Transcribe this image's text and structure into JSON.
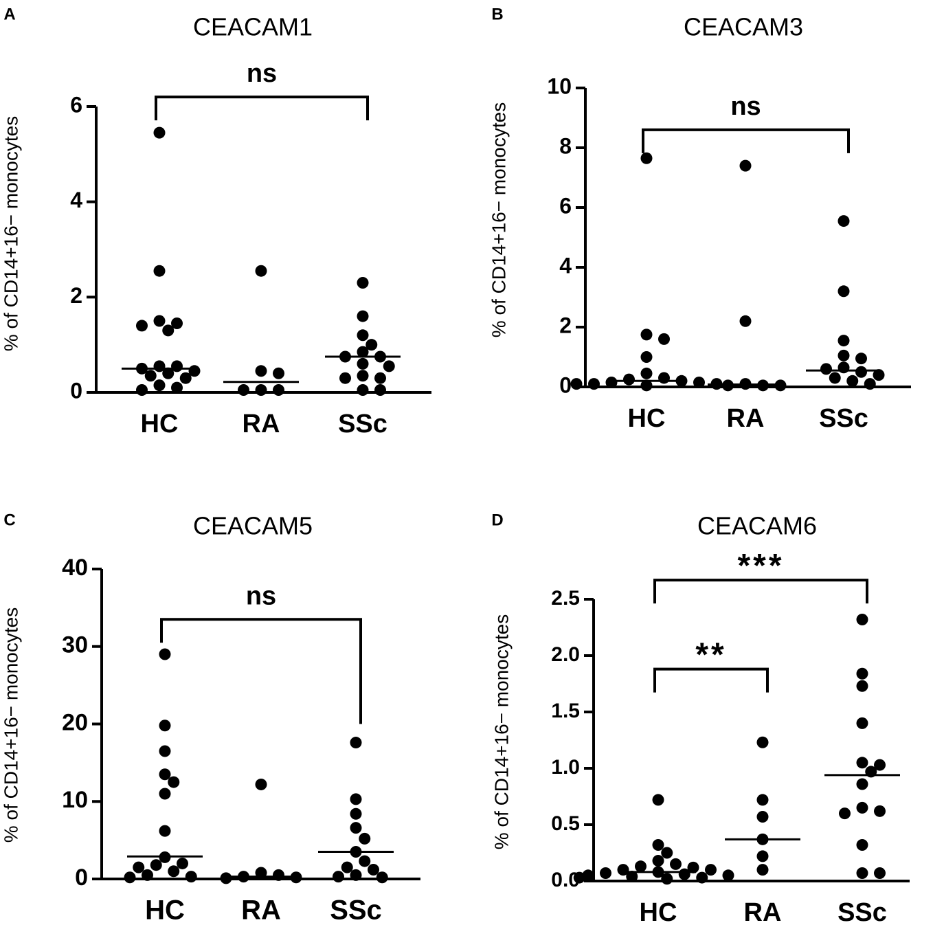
{
  "figure": {
    "panels": [
      "A",
      "B",
      "C",
      "D"
    ]
  },
  "chart_data": [
    {
      "panel": "A",
      "type": "scatter",
      "title": "CEACAM1",
      "ylabel": "% of CD14+16− monocytes",
      "categories": [
        "HC",
        "RA",
        "SSc"
      ],
      "ylim": [
        0,
        6
      ],
      "yticks": [
        "0",
        "2",
        "4",
        "6"
      ],
      "ytick_values": [
        0,
        2,
        4,
        6
      ],
      "series": [
        {
          "name": "HC",
          "values": [
            5.45,
            2.55,
            1.5,
            1.45,
            1.4,
            1.3,
            0.55,
            0.55,
            0.5,
            0.45,
            0.4,
            0.35,
            0.3,
            0.15,
            0.1,
            0.05
          ],
          "median": 0.5
        },
        {
          "name": "RA",
          "values": [
            2.55,
            0.45,
            0.4,
            0.05,
            0.05,
            0.05
          ],
          "median": 0.22
        },
        {
          "name": "SSc",
          "values": [
            2.3,
            1.6,
            1.2,
            1.0,
            0.85,
            0.75,
            0.75,
            0.6,
            0.55,
            0.35,
            0.3,
            0.3,
            0.05,
            0.05
          ],
          "median": 0.75
        }
      ],
      "comparisons": [
        {
          "from": "HC",
          "to": "SSc",
          "label": "ns",
          "level": 6.2
        }
      ]
    },
    {
      "panel": "B",
      "type": "scatter",
      "title": "CEACAM3",
      "ylabel": "% of CD14+16− monocytes",
      "categories": [
        "HC",
        "RA",
        "SSc"
      ],
      "ylim": [
        0,
        10
      ],
      "yticks": [
        "0",
        "2",
        "4",
        "6",
        "8",
        "10"
      ],
      "ytick_values": [
        0,
        2,
        4,
        6,
        8,
        10
      ],
      "series": [
        {
          "name": "HC",
          "values": [
            7.65,
            1.75,
            1.6,
            1.0,
            0.45,
            0.3,
            0.25,
            0.2,
            0.15,
            0.15,
            0.1,
            0.1,
            0.1,
            0.05
          ],
          "median": 0.2
        },
        {
          "name": "RA",
          "values": [
            7.4,
            2.2,
            0.1,
            0.05,
            0.05,
            0.05
          ],
          "median": 0.08
        },
        {
          "name": "SSc",
          "values": [
            5.55,
            3.2,
            1.55,
            1.05,
            0.95,
            0.65,
            0.6,
            0.5,
            0.4,
            0.3,
            0.2,
            0.1
          ],
          "median": 0.55
        }
      ],
      "comparisons": [
        {
          "from": "HC",
          "to": "SSc",
          "label": "ns",
          "level": 8.6
        }
      ]
    },
    {
      "panel": "C",
      "type": "scatter",
      "title": "CEACAM5",
      "ylabel": "% of CD14+16− monocytes",
      "categories": [
        "HC",
        "RA",
        "SSc"
      ],
      "ylim": [
        0,
        40
      ],
      "yticks": [
        "0",
        "10",
        "20",
        "30",
        "40"
      ],
      "ytick_values": [
        0,
        10,
        20,
        30,
        40
      ],
      "series": [
        {
          "name": "HC",
          "values": [
            29.0,
            19.8,
            16.5,
            13.5,
            12.5,
            11.0,
            6.2,
            2.8,
            2.0,
            1.8,
            1.5,
            1.0,
            0.5,
            0.3,
            0.2
          ],
          "median": 2.9
        },
        {
          "name": "RA",
          "values": [
            12.2,
            0.8,
            0.5,
            0.3,
            0.2,
            0.1
          ],
          "median": 0.3
        },
        {
          "name": "SSc",
          "values": [
            17.6,
            10.3,
            8.4,
            6.6,
            5.2,
            3.5,
            2.3,
            1.5,
            1.2,
            0.5,
            0.3,
            0.2
          ],
          "median": 3.5
        }
      ],
      "comparisons": [
        {
          "from": "HC",
          "to": "SSc",
          "label": "ns",
          "level": 33.5,
          "drop_from": 33.5,
          "drop_to": 20
        }
      ]
    },
    {
      "panel": "D",
      "type": "scatter",
      "title": "CEACAM6",
      "ylabel": "% of CD14+16− monocytes",
      "categories": [
        "HC",
        "RA",
        "SSc"
      ],
      "ylim": [
        0,
        2.5
      ],
      "yticks": [
        "0.0",
        "0.5",
        "1.0",
        "1.5",
        "2.0",
        "2.5"
      ],
      "ytick_values": [
        0,
        0.5,
        1.0,
        1.5,
        2.0,
        2.5
      ],
      "series": [
        {
          "name": "HC",
          "values": [
            0.72,
            0.32,
            0.25,
            0.18,
            0.15,
            0.13,
            0.12,
            0.1,
            0.1,
            0.08,
            0.07,
            0.06,
            0.05,
            0.05,
            0.04,
            0.03,
            0.03,
            0.02
          ],
          "median": 0.08
        },
        {
          "name": "RA",
          "values": [
            1.23,
            0.72,
            0.57,
            0.37,
            0.22,
            0.1
          ],
          "median": 0.37
        },
        {
          "name": "SSc",
          "values": [
            2.32,
            1.84,
            1.73,
            1.4,
            1.05,
            1.03,
            0.97,
            0.86,
            0.65,
            0.62,
            0.6,
            0.32,
            0.07,
            0.07
          ],
          "median": 0.94
        }
      ],
      "comparisons": [
        {
          "from": "HC",
          "to": "SSc",
          "label": "***",
          "level": 2.67
        },
        {
          "from": "HC",
          "to": "RA",
          "label": "**",
          "level": 1.88
        }
      ]
    }
  ]
}
